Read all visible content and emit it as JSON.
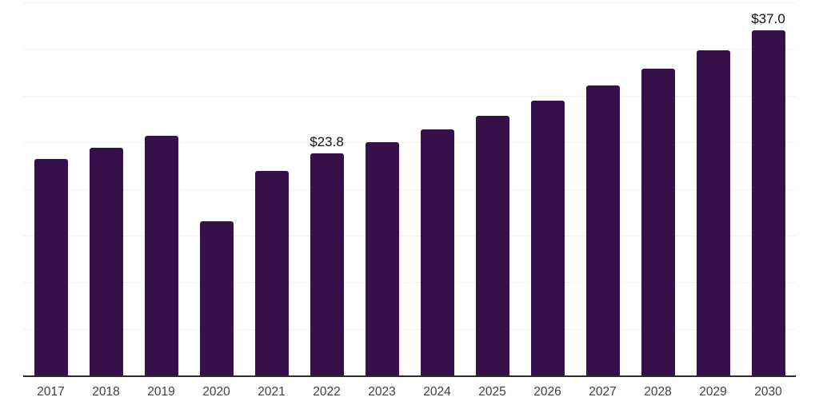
{
  "chart_data": {
    "type": "bar",
    "title": "",
    "xlabel": "",
    "ylabel": "",
    "categories": [
      "2017",
      "2018",
      "2019",
      "2020",
      "2021",
      "2022",
      "2023",
      "2024",
      "2025",
      "2026",
      "2027",
      "2028",
      "2029",
      "2030"
    ],
    "values": [
      23.2,
      24.4,
      25.7,
      16.5,
      21.9,
      23.8,
      25.0,
      26.4,
      27.8,
      29.5,
      31.1,
      32.9,
      34.9,
      37.0
    ],
    "point_labels": {
      "2022": "$23.8",
      "2030": "$37.0"
    },
    "ylim": [
      0,
      40
    ],
    "gridline_step": 5,
    "grid": true,
    "legend_position": "none",
    "y_axis_tick_labels_visible": false,
    "colors": {
      "bar": "#36104b",
      "gridline": "#f2f2f2",
      "axis_line": "#2b2b2b",
      "tick_label": "#3f3f3f",
      "data_label": "#111111",
      "background": "#ffffff"
    }
  }
}
